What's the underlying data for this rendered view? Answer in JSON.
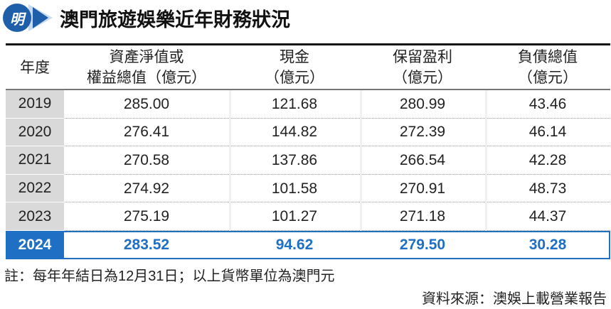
{
  "header": {
    "logo": "明",
    "title": "澳門旅遊娛樂近年財務狀況"
  },
  "table": {
    "columns": [
      [
        "年度"
      ],
      [
        "資產淨值或",
        "權益總值（億元）"
      ],
      [
        "現金",
        "（億元）"
      ],
      [
        "保留盈利",
        "（億元）"
      ],
      [
        "負債總值",
        "（億元）"
      ]
    ],
    "rows": [
      [
        "2019",
        "285.00",
        "121.68",
        "280.99",
        "43.46"
      ],
      [
        "2020",
        "276.41",
        "144.82",
        "272.39",
        "46.14"
      ],
      [
        "2021",
        "270.58",
        "137.86",
        "266.54",
        "42.28"
      ],
      [
        "2022",
        "274.92",
        "101.58",
        "270.91",
        "48.73"
      ],
      [
        "2023",
        "275.19",
        "101.27",
        "271.18",
        "44.37"
      ],
      [
        "2024",
        "283.52",
        "94.62",
        "279.50",
        "30.28"
      ]
    ]
  },
  "footer": {
    "note": "註：每年年結日為12月31日；以上貨幣單位為澳門元",
    "source": "資料來源：澳娛上載營業報告"
  }
}
